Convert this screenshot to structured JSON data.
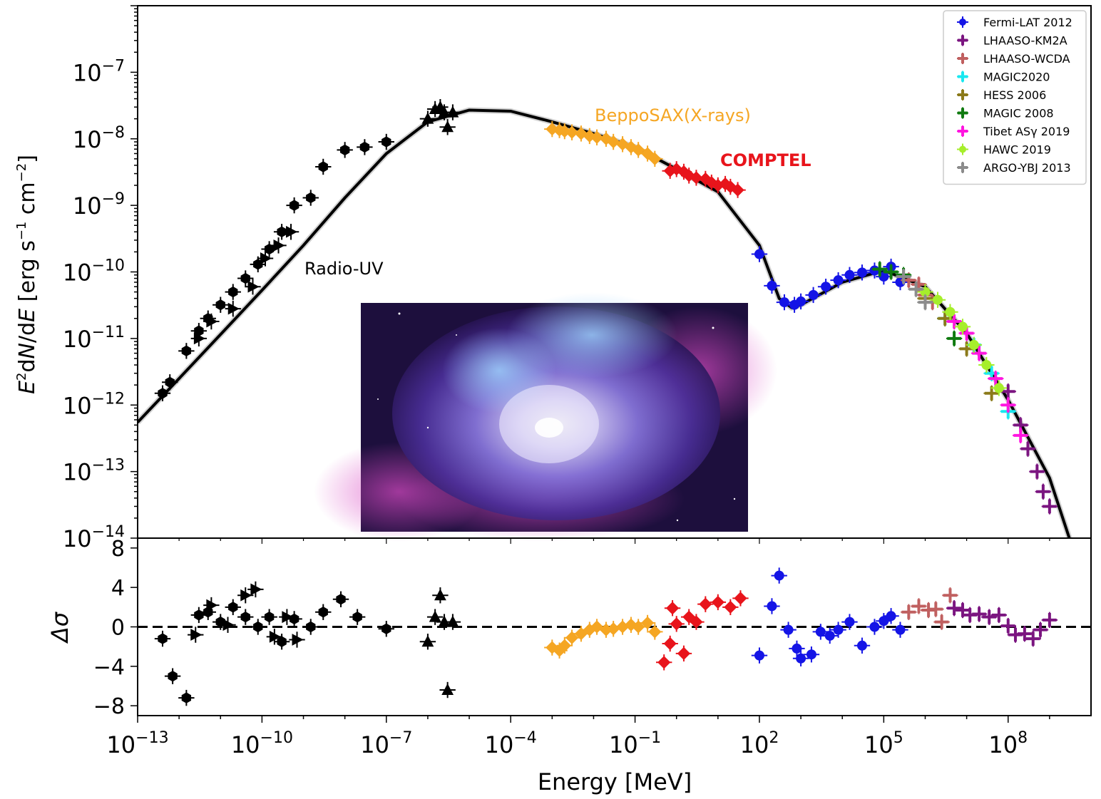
{
  "chart_data": [
    {
      "type": "scatter",
      "panel": "main",
      "xlabel": "Energy [MeV]",
      "ylabel": "E^2dN/dE [erg s^-1 cm^-2]",
      "xscale": "log",
      "yscale": "log",
      "xlim": [
        1e-13,
        10000000000.0
      ],
      "ylim": [
        1e-14,
        1e-06
      ],
      "xticks": [
        {
          "value": 1e-13,
          "base": "10",
          "exp": "−13"
        },
        {
          "value": 1e-10,
          "base": "10",
          "exp": "−10"
        },
        {
          "value": 1e-07,
          "base": "10",
          "exp": "−7"
        },
        {
          "value": 0.0001,
          "base": "10",
          "exp": "−4"
        },
        {
          "value": 0.1,
          "base": "10",
          "exp": "−1"
        },
        {
          "value": 100.0,
          "base": "10",
          "exp": "2"
        },
        {
          "value": 100000.0,
          "base": "10",
          "exp": "5"
        },
        {
          "value": 100000000.0,
          "base": "10",
          "exp": "8"
        }
      ],
      "yticks": [
        {
          "value": 1e-07,
          "base": "10",
          "exp": "−7"
        },
        {
          "value": 1e-08,
          "base": "10",
          "exp": "−8"
        },
        {
          "value": 1e-09,
          "base": "10",
          "exp": "−9"
        },
        {
          "value": 1e-10,
          "base": "10",
          "exp": "−10"
        },
        {
          "value": 1e-11,
          "base": "10",
          "exp": "−11"
        },
        {
          "value": 1e-12,
          "base": "10",
          "exp": "−12"
        },
        {
          "value": 1e-13,
          "base": "10",
          "exp": "−13"
        },
        {
          "value": 1e-14,
          "base": "10",
          "exp": "−14"
        }
      ],
      "legend_position": "top-right",
      "annotations": [
        {
          "text": "BeppoSAX(X-rays)",
          "color": "#f5a623",
          "x": 0.05,
          "y": 1.4e-08
        },
        {
          "text": "COMPTEL",
          "color": "#e8141b",
          "x": 20,
          "y": 4e-09
        },
        {
          "text": "Radio-UV",
          "color": "#000000",
          "x": 1e-09,
          "y": 6e-11
        }
      ],
      "inset_image": "Crab Nebula composite image",
      "model_curve": {
        "color": "#000000",
        "points": [
          [
            1e-13,
            5.5e-13
          ],
          [
            1e-12,
            2.5e-12
          ],
          [
            1e-11,
            1.15e-11
          ],
          [
            1e-10,
            5.3e-11
          ],
          [
            1e-09,
            2.5e-10
          ],
          [
            1e-08,
            1.3e-09
          ],
          [
            1e-07,
            6e-09
          ],
          [
            1e-06,
            1.8e-08
          ],
          [
            1e-05,
            2.7e-08
          ],
          [
            0.0001,
            2.6e-08
          ],
          [
            0.001,
            1.8e-08
          ],
          [
            0.01,
            1.2e-08
          ],
          [
            0.1,
            7.5e-09
          ],
          [
            1,
            3.5e-09
          ],
          [
            10,
            1.6e-09
          ],
          [
            100,
            2.5e-10
          ],
          [
            300,
            4e-11
          ],
          [
            600,
            2.9e-11
          ],
          [
            1000,
            3.2e-11
          ],
          [
            10000.0,
            7e-11
          ],
          [
            100000.0,
            1.05e-10
          ],
          [
            1000000.0,
            6e-11
          ],
          [
            10000000.0,
            1.2e-11
          ],
          [
            100000000.0,
            1.2e-12
          ],
          [
            1000000000.0,
            8e-14
          ],
          [
            3000000000.0,
            1e-14
          ]
        ]
      },
      "series": [
        {
          "name": "Radio-UV",
          "color": "#000000",
          "marker": "hexagon",
          "x": [
            4e-13,
            6e-13,
            1.5e-12,
            3e-12,
            5e-12,
            1e-11,
            2e-11,
            4e-11,
            8e-11,
            1.5e-10,
            3e-10,
            6e-10,
            1.5e-09,
            3e-09,
            1e-08,
            3e-08,
            1e-07
          ],
          "y": [
            1.5e-12,
            2.2e-12,
            6.5e-12,
            1.3e-11,
            2e-11,
            3.2e-11,
            5e-11,
            8e-11,
            1.3e-10,
            2.2e-10,
            4e-10,
            1e-09,
            1.3e-09,
            3.8e-09,
            6.8e-09,
            7.5e-09,
            9e-09
          ]
        },
        {
          "name": "Radio-UV",
          "color": "#000000",
          "marker": "triangle-right",
          "x": [
            3e-12,
            6e-12,
            2e-11,
            6e-11,
            1.2e-10,
            2.5e-10,
            5e-10
          ],
          "y": [
            1e-11,
            1.8e-11,
            2.8e-11,
            6e-11,
            1.6e-10,
            2.5e-10,
            4e-10
          ]
        },
        {
          "name": "Radio-UV",
          "color": "#000000",
          "marker": "triangle-up",
          "x": [
            1e-06,
            1.5e-06,
            2e-06,
            2.5e-06,
            3e-06,
            4e-06
          ],
          "y": [
            2e-08,
            2.8e-08,
            3e-08,
            2.5e-08,
            1.5e-08,
            2.5e-08
          ]
        },
        {
          "name": "BeppoSAX(X-rays)",
          "color": "#f5a623",
          "marker": "diamond",
          "x": [
            0.001,
            0.0015,
            0.002,
            0.003,
            0.005,
            0.008,
            0.012,
            0.02,
            0.03,
            0.05,
            0.08,
            0.12,
            0.2,
            0.3
          ],
          "y": [
            1.4e-08,
            1.35e-08,
            1.3e-08,
            1.25e-08,
            1.2e-08,
            1.1e-08,
            1.05e-08,
            1e-08,
            9e-09,
            8.3e-09,
            7.5e-09,
            6.8e-09,
            6e-09,
            5e-09
          ]
        },
        {
          "name": "COMPTEL",
          "color": "#e8141b",
          "marker": "diamond",
          "x": [
            0.7,
            1,
            1.5,
            2,
            3,
            5,
            7,
            10,
            15,
            20,
            30
          ],
          "y": [
            3.3e-09,
            3.5e-09,
            3.2e-09,
            2.8e-09,
            2.6e-09,
            2.5e-09,
            2.2e-09,
            2e-09,
            2.1e-09,
            1.9e-09,
            1.7e-09
          ]
        },
        {
          "name": "Fermi-LAT 2012",
          "color": "#1414e6",
          "marker": "circle",
          "x": [
            100,
            200,
            400,
            700,
            1000,
            2000,
            4000,
            8000,
            15000,
            30000,
            60000,
            100000,
            150000,
            250000
          ],
          "y": [
            1.85e-10,
            6.2e-11,
            3.5e-11,
            3.2e-11,
            3.6e-11,
            4.5e-11,
            6e-11,
            7.5e-11,
            9e-11,
            9.8e-11,
            1.05e-10,
            8.5e-11,
            1.2e-10,
            7e-11
          ]
        },
        {
          "name": "LHAASO-KM2A",
          "color": "#7b1580",
          "marker": "plus",
          "x": [
            100000000.0,
            200000000.0,
            300000000.0,
            500000000.0,
            700000000.0,
            1000000000.0
          ],
          "y": [
            1.6e-12,
            5e-13,
            2.2e-13,
            1e-13,
            5e-14,
            3e-14
          ]
        },
        {
          "name": "LHAASO-WCDA",
          "color": "#c06060",
          "marker": "plus",
          "x": [
            400000,
            700000,
            1000000,
            1500000
          ],
          "y": [
            7.5e-11,
            6.5e-11,
            4.5e-11,
            3.5e-11
          ]
        },
        {
          "name": "MAGIC2020",
          "color": "#19e8f0",
          "marker": "plus",
          "x": [
            3000000.0,
            15000000.0,
            40000000.0,
            100000000.0
          ],
          "y": [
            2e-11,
            8e-12,
            3e-12,
            8e-13
          ]
        },
        {
          "name": "HESS 2006",
          "color": "#8b7a1a",
          "marker": "plus",
          "x": [
            1000000.0,
            3000000.0,
            10000000.0,
            40000000.0
          ],
          "y": [
            4e-11,
            2e-11,
            7e-12,
            1.5e-12
          ]
        },
        {
          "name": "MAGIC 2008",
          "color": "#0f7a0f",
          "marker": "plus",
          "x": [
            80000,
            150000,
            300000,
            5000000.0
          ],
          "y": [
            1.1e-10,
            1e-10,
            9e-11,
            1e-11
          ]
        },
        {
          "name": "Tibet ASγ 2019",
          "color": "#ff16e0",
          "marker": "plus",
          "x": [
            5000000.0,
            10000000.0,
            20000000.0,
            50000000.0,
            100000000.0,
            200000000.0
          ],
          "y": [
            1.8e-11,
            1.2e-11,
            6e-12,
            2.5e-12,
            1e-12,
            3.5e-13
          ]
        },
        {
          "name": "HAWC 2019",
          "color": "#a6ee2b",
          "marker": "circle",
          "x": [
            1000000.0,
            2000000.0,
            4000000.0,
            8000000.0,
            15000000.0,
            30000000.0,
            60000000.0
          ],
          "y": [
            5e-11,
            3.8e-11,
            2.5e-11,
            1.5e-11,
            8e-12,
            4e-12,
            1.8e-12
          ]
        },
        {
          "name": "ARGO-YBJ 2013",
          "color": "#8c8c8c",
          "marker": "plus",
          "x": [
            300000,
            600000,
            1000000
          ],
          "y": [
            8.5e-11,
            5.5e-11,
            3.5e-11
          ]
        }
      ]
    },
    {
      "type": "scatter",
      "panel": "residuals",
      "xlabel": "Energy [MeV]",
      "ylabel": "Δσ",
      "xscale": "log",
      "xlim": [
        1e-13,
        10000000000.0
      ],
      "ylim": [
        -9,
        9
      ],
      "yticks": [
        {
          "value": 8,
          "label": "8"
        },
        {
          "value": 4,
          "label": "4"
        },
        {
          "value": 0,
          "label": "0"
        },
        {
          "value": -4,
          "label": "−4"
        },
        {
          "value": -8,
          "label": "−8"
        }
      ],
      "zero_line": "dashed",
      "series": [
        {
          "name": "Radio-UV",
          "color": "#000000",
          "marker": "hexagon",
          "x": [
            4e-13,
            7e-13,
            1.5e-12,
            3e-12,
            5e-12,
            1e-11,
            2e-11,
            4e-11,
            8e-11,
            1.5e-10,
            3e-10,
            6e-10,
            1.5e-09,
            3e-09,
            8e-09,
            2e-08,
            1e-07
          ],
          "y": [
            -1.2,
            -5,
            -7.2,
            1.2,
            1.5,
            0.5,
            2,
            1,
            0,
            1,
            -1.5,
            0.8,
            0,
            1.5,
            2.8,
            1,
            -0.2
          ]
        },
        {
          "name": "Radio-UV",
          "color": "#000000",
          "marker": "triangle-right",
          "x": [
            2.5e-12,
            6e-12,
            1.5e-11,
            4e-11,
            7e-11,
            2e-10,
            4e-10,
            7e-10
          ],
          "y": [
            -0.8,
            2.2,
            0.2,
            3.2,
            3.8,
            -1,
            1,
            -1.3
          ]
        },
        {
          "name": "Radio-UV",
          "color": "#000000",
          "marker": "triangle-up",
          "x": [
            1e-06,
            1.5e-06,
            2e-06,
            2.5e-06,
            3e-06,
            4e-06
          ],
          "y": [
            -1.5,
            1,
            3.2,
            0.5,
            -6.4,
            0.5
          ]
        },
        {
          "name": "BeppoSAX(X-rays)",
          "color": "#f5a623",
          "marker": "diamond",
          "x": [
            0.001,
            0.0015,
            0.002,
            0.003,
            0.005,
            0.008,
            0.012,
            0.02,
            0.03,
            0.05,
            0.08,
            0.12,
            0.2,
            0.3
          ],
          "y": [
            -2.1,
            -2.4,
            -1.9,
            -1.1,
            -0.7,
            -0.3,
            0,
            -0.3,
            -0.2,
            0,
            0.2,
            0,
            0.4,
            -0.5
          ]
        },
        {
          "name": "COMPTEL",
          "color": "#e8141b",
          "marker": "diamond",
          "x": [
            0.5,
            0.7,
            0.8,
            1,
            1.5,
            2,
            3,
            5,
            10,
            20,
            35
          ],
          "y": [
            -3.6,
            -1.7,
            1.9,
            0.3,
            -2.7,
            1,
            0.5,
            2.3,
            2.5,
            2,
            2.9
          ]
        },
        {
          "name": "Fermi-LAT 2012",
          "color": "#1414e6",
          "marker": "circle",
          "x": [
            100,
            200,
            300,
            500,
            800,
            1000,
            1800,
            3000,
            5000,
            8000,
            15000,
            30000,
            60000,
            100000,
            150000,
            250000
          ],
          "y": [
            -2.9,
            2.1,
            5.2,
            -0.3,
            -2.2,
            -3.2,
            -2.8,
            -0.5,
            -0.9,
            -0.3,
            0.5,
            -1.9,
            0,
            0.6,
            1.1,
            -0.3
          ]
        },
        {
          "name": "LHAASO-WCDA",
          "color": "#c06060",
          "marker": "plus",
          "x": [
            400000,
            700000,
            1200000,
            1800000,
            2500000,
            4000000
          ],
          "y": [
            1.5,
            2.1,
            1.7,
            1.8,
            0.5,
            3.2
          ]
        },
        {
          "name": "LHAASO-KM2A",
          "color": "#7b1580",
          "marker": "plus",
          "x": [
            5000000,
            8000000,
            12000000.0,
            20000000.0,
            35000000.0,
            60000000.0,
            100000000.0,
            150000000.0,
            250000000.0,
            400000000.0,
            600000000.0,
            1000000000.0
          ],
          "y": [
            1.9,
            1.7,
            1.2,
            1.3,
            1.0,
            1.2,
            0.1,
            -0.8,
            -0.7,
            -1.2,
            -0.3,
            0.7
          ]
        }
      ]
    }
  ]
}
